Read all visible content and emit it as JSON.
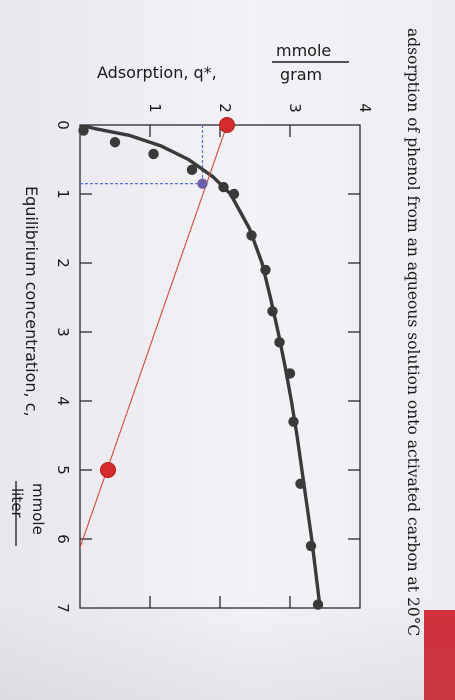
{
  "chart_data": {
    "type": "scatter",
    "title": "adsorption of phenol from an aqueous solution onto activated carbon at 20°C",
    "xlabel": "Equilibrium concentration, c,",
    "xlabel_unit_num": "mmole",
    "xlabel_unit_den": "liter",
    "ylabel": "Adsorption, q*,",
    "ylabel_unit_num": "mmole",
    "ylabel_unit_den": "gram",
    "xlim": [
      0,
      7
    ],
    "ylim": [
      0,
      4
    ],
    "x_ticks": [
      "0",
      "1",
      "2",
      "3",
      "4",
      "5",
      "6",
      "7"
    ],
    "y_ticks": [
      "1",
      "2",
      "3",
      "4"
    ],
    "grid": false,
    "orientation": "rotated 90° clockwise",
    "series": [
      {
        "kind": "points",
        "color": "#3a3a3a",
        "x": [
          0.08,
          0.25,
          0.42,
          0.65,
          0.9,
          1.0,
          1.6,
          2.1,
          2.7,
          3.15,
          3.6,
          4.3,
          5.2,
          6.1,
          6.95
        ],
        "y": [
          0.05,
          0.5,
          1.05,
          1.6,
          2.05,
          2.2,
          2.45,
          2.65,
          2.75,
          2.85,
          3.0,
          3.05,
          3.15,
          3.3,
          3.4
        ]
      },
      {
        "kind": "fit-curve",
        "color": "#3a3a3a",
        "x": [
          0.0,
          0.05,
          0.15,
          0.3,
          0.5,
          0.75,
          1.0,
          1.5,
          2.0,
          2.5,
          3.0,
          3.5,
          4.0,
          4.5,
          5.0,
          5.5,
          6.0,
          6.5,
          7.0
        ],
        "y": [
          0.0,
          0.2,
          0.7,
          1.15,
          1.55,
          1.9,
          2.15,
          2.42,
          2.6,
          2.72,
          2.83,
          2.93,
          3.02,
          3.1,
          3.17,
          3.24,
          3.31,
          3.37,
          3.43
        ]
      },
      {
        "kind": "operating-line",
        "color": "#d24b3b",
        "x": [
          0.0,
          7.0
        ],
        "y": [
          2.1,
          -0.3
        ]
      },
      {
        "kind": "marked-points",
        "color": "#d42c2c",
        "x": [
          0.0,
          5.0
        ],
        "y": [
          2.1,
          0.4
        ]
      }
    ],
    "guide_lines": {
      "color": "#5a6fd8",
      "intersection": {
        "x": 0.85,
        "y": 1.75
      }
    }
  }
}
